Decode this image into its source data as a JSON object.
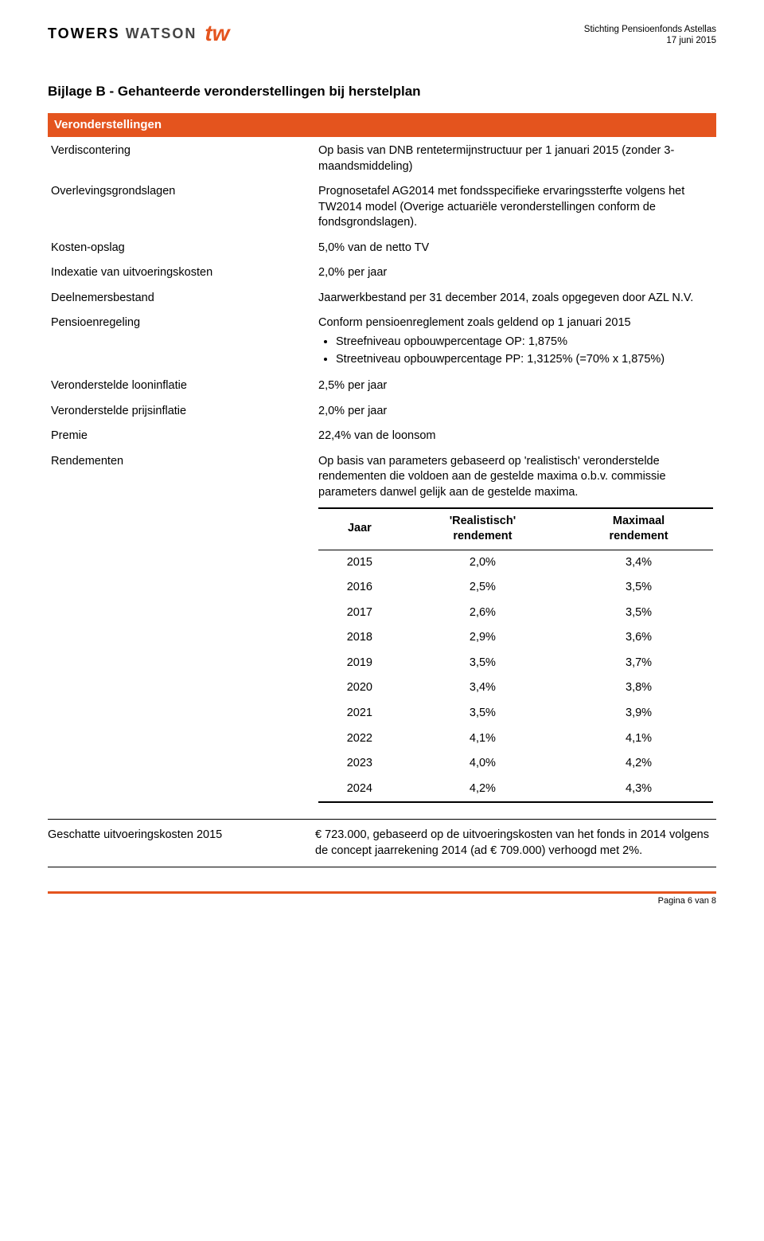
{
  "header": {
    "brand_part1": "TOWERS",
    "brand_part2": "WATSON",
    "brand_accent_color": "#e4541e",
    "org": "Stichting Pensioenfonds Astellas",
    "date": "17 juni 2015"
  },
  "page_title": "Bijlage B - Gehanteerde veronderstellingen bij herstelplan",
  "section_band": "Veronderstellingen",
  "kv": [
    {
      "k": "Verdiscontering",
      "v": "Op basis van DNB rentetermijnstructuur per 1 januari 2015 (zonder 3-maandsmiddeling)"
    },
    {
      "k": "Overlevingsgrondslagen",
      "v": "Prognosetafel AG2014 met fondsspecifieke ervaringssterfte volgens het TW2014 model (Overige actuariële veronderstellingen conform de fondsgrondslagen)."
    },
    {
      "k": "Kosten-opslag",
      "v": "5,0% van de netto TV"
    },
    {
      "k": "Indexatie van uitvoeringskosten",
      "v": "2,0% per jaar"
    },
    {
      "k": "Deelnemersbestand",
      "v": "Jaarwerkbestand per 31 december 2014, zoals opgegeven door AZL N.V."
    }
  ],
  "pensioenregeling": {
    "label": "Pensioenregeling",
    "intro": "Conform pensioenreglement zoals geldend op 1 januari 2015",
    "bullets": [
      "Streefniveau opbouwpercentage OP: 1,875%",
      "Streetniveau opbouwpercentage PP: 1,3125% (=70% x 1,875%)"
    ]
  },
  "kv2": [
    {
      "k": "Veronderstelde looninflatie",
      "v": "2,5% per jaar"
    },
    {
      "k": "Veronderstelde prijsinflatie",
      "v": "2,0% per jaar"
    },
    {
      "k": "Premie",
      "v": "22,4% van de loonsom"
    }
  ],
  "rendementen": {
    "label": "Rendementen",
    "intro": "Op basis van parameters gebaseerd op 'realistisch' veronderstelde rendementen die voldoen aan de gestelde maxima o.b.v. commissie parameters danwel gelijk aan de gestelde maxima.",
    "columns": [
      "Jaar",
      "'Realistisch' rendement",
      "Maximaal rendement"
    ],
    "rows": [
      [
        "2015",
        "2,0%",
        "3,4%"
      ],
      [
        "2016",
        "2,5%",
        "3,5%"
      ],
      [
        "2017",
        "2,6%",
        "3,5%"
      ],
      [
        "2018",
        "2,9%",
        "3,6%"
      ],
      [
        "2019",
        "3,5%",
        "3,7%"
      ],
      [
        "2020",
        "3,4%",
        "3,8%"
      ],
      [
        "2021",
        "3,5%",
        "3,9%"
      ],
      [
        "2022",
        "4,1%",
        "4,1%"
      ],
      [
        "2023",
        "4,0%",
        "4,2%"
      ],
      [
        "2024",
        "4,2%",
        "4,3%"
      ]
    ]
  },
  "footer_kv": {
    "k": "Geschatte uitvoeringskosten 2015",
    "v": "€ 723.000, gebaseerd op de uitvoeringskosten van het fonds in 2014 volgens de concept jaarrekening 2014 (ad € 709.000) verhoogd met 2%."
  },
  "page_number": "Pagina 6 van 8"
}
